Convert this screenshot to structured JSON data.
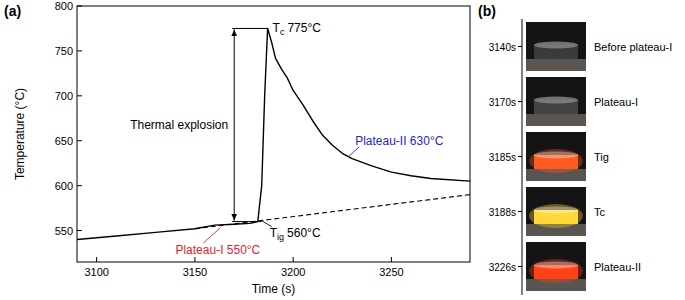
{
  "chart_data": {
    "type": "line",
    "panel_label": "(a)",
    "x_label": "Time (s)",
    "y_label": "Temperature (°C)",
    "xlim": [
      3090,
      3290
    ],
    "ylim": [
      515,
      800
    ],
    "xticks": [
      3100,
      3150,
      3200,
      3250
    ],
    "yticks": [
      550,
      600,
      650,
      700,
      750,
      800
    ],
    "series": [
      {
        "color": "#000000",
        "line_style": "solid",
        "x": [
          3090,
          3110,
          3130,
          3150,
          3160,
          3170,
          3178,
          3182,
          3184,
          3185.5,
          3187,
          3189,
          3191,
          3194,
          3197,
          3200,
          3205,
          3210,
          3215,
          3220,
          3225,
          3230,
          3240,
          3250,
          3260,
          3270,
          3290
        ],
        "values": [
          540,
          544,
          548,
          552,
          556,
          557,
          558,
          560,
          600,
          700,
          775,
          760,
          742,
          730,
          720,
          706,
          690,
          672,
          656,
          645,
          636,
          630,
          622,
          615,
          611,
          608,
          605
        ]
      },
      {
        "color": "#000000",
        "line_style": "dashed",
        "x": [
          3150,
          3290
        ],
        "values": [
          552,
          590
        ]
      }
    ],
    "annotations": [
      {
        "symbol": "T",
        "subscript": "c",
        "text": "775°C",
        "x": 3187,
        "y": 775,
        "color": "#000000"
      },
      {
        "symbol": "T",
        "subscript": "ig",
        "text": "560°C",
        "x": 3184,
        "y": 561,
        "color": "#000000"
      },
      {
        "text": "Plateau-I 550°C",
        "x": 3163,
        "y": 553,
        "color": "#e8202a"
      },
      {
        "text": "Plateau-II 630°C",
        "x": 3228,
        "y": 632,
        "color": "#2626c8"
      }
    ],
    "thermal_explosion": {
      "text": "Thermal explosion",
      "x": 3170,
      "y_from": 560,
      "y_to": 775
    }
  },
  "photo_panel": {
    "panel_label": "(b)",
    "frames": [
      {
        "time": "3140s",
        "caption": "Before plateau-I",
        "color": "#3a3a3a"
      },
      {
        "time": "3170s",
        "caption": "Plateau-I",
        "color": "#444444"
      },
      {
        "time": "3185s",
        "caption": "Tig",
        "color": "#ff5a1f"
      },
      {
        "time": "3188s",
        "caption": "Tc",
        "color": "#ffd83a"
      },
      {
        "time": "3226s",
        "caption": "Plateau-II",
        "color": "#ff4216"
      }
    ]
  }
}
